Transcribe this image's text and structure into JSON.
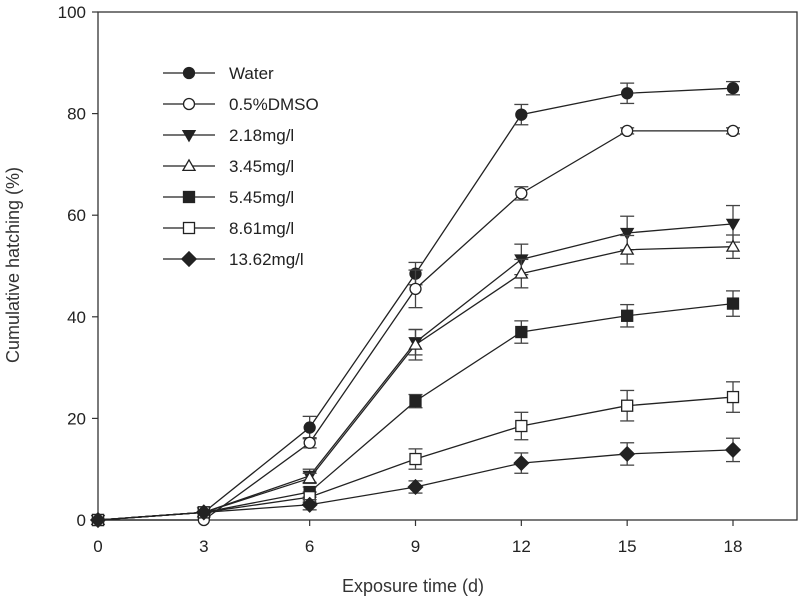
{
  "chart_data": {
    "type": "line",
    "title": "",
    "xlabel": "Exposure time (d)",
    "ylabel": "Cumulative hatching (%)",
    "x": [
      0,
      3,
      6,
      9,
      12,
      15,
      18
    ],
    "xlim": [
      0,
      20
    ],
    "ylim": [
      0,
      100
    ],
    "xticks": [
      0,
      3,
      6,
      9,
      12,
      15,
      18
    ],
    "yticks": [
      0,
      20,
      40,
      60,
      80,
      100
    ],
    "xtick_labels": [
      "0",
      "3",
      "6",
      "9",
      "12",
      "15",
      "18"
    ],
    "ytick_labels": [
      "0",
      "20",
      "40",
      "60",
      "80",
      "100"
    ],
    "grid": false,
    "legend_position": "top-left",
    "series": [
      {
        "name": "Water",
        "marker": "circle",
        "filled": true,
        "values": [
          0,
          1.5,
          18.2,
          48.5,
          79.8,
          84.0,
          85.0
        ],
        "errors": [
          0,
          0.3,
          2.2,
          2.2,
          2.0,
          2.0,
          1.3
        ]
      },
      {
        "name": "0.5%DMSO",
        "marker": "circle",
        "filled": false,
        "values": [
          0,
          0,
          15.2,
          45.5,
          64.3,
          76.6,
          76.6
        ],
        "errors": [
          0,
          0.3,
          1.0,
          3.7,
          1.3,
          0.6,
          0.6
        ]
      },
      {
        "name": "2.18mg/l",
        "marker": "triangle-down",
        "filled": true,
        "values": [
          0,
          1.5,
          8.7,
          35.0,
          51.3,
          56.5,
          58.3
        ],
        "errors": [
          0,
          0.3,
          1.3,
          2.5,
          3.0,
          3.3,
          3.6
        ]
      },
      {
        "name": "3.45mg/l",
        "marker": "triangle-up",
        "filled": false,
        "values": [
          0,
          1.5,
          8.2,
          34.5,
          48.5,
          53.2,
          53.8
        ],
        "errors": [
          0,
          0.3,
          1.0,
          3.0,
          2.8,
          2.8,
          2.3
        ]
      },
      {
        "name": "5.45mg/l",
        "marker": "square",
        "filled": true,
        "values": [
          0,
          1.5,
          5.5,
          23.4,
          37.0,
          40.2,
          42.6
        ],
        "errors": [
          0,
          0.3,
          1.0,
          1.3,
          2.2,
          2.2,
          2.5
        ]
      },
      {
        "name": "8.61mg/l",
        "marker": "square",
        "filled": false,
        "values": [
          0,
          1.5,
          4.5,
          12.0,
          18.5,
          22.5,
          24.2
        ],
        "errors": [
          0,
          0.3,
          1.0,
          2.0,
          2.7,
          3.0,
          3.0
        ]
      },
      {
        "name": "13.62mg/l",
        "marker": "diamond",
        "filled": true,
        "values": [
          0,
          1.5,
          3.0,
          6.5,
          11.2,
          13.0,
          13.8
        ],
        "errors": [
          0,
          0.3,
          1.0,
          1.2,
          2.0,
          2.2,
          2.3
        ]
      }
    ]
  }
}
